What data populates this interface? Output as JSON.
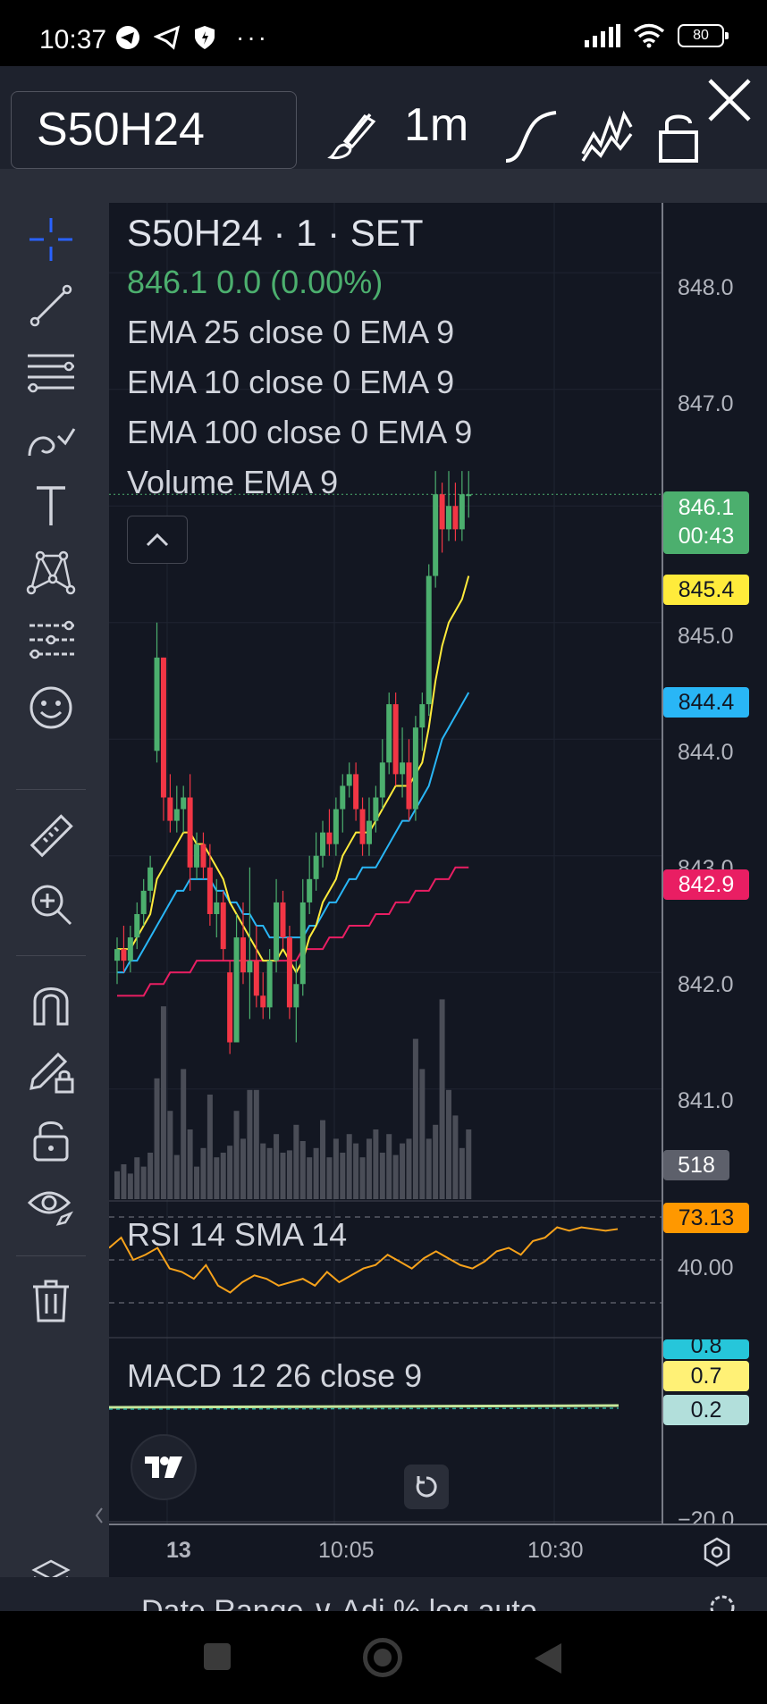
{
  "status_bar": {
    "time": "10:37",
    "icons": [
      "telegram-icon",
      "send-icon",
      "shield-icon",
      "more-dots"
    ],
    "battery": "80"
  },
  "toolbar": {
    "symbol": "S50H24",
    "interval": "1m"
  },
  "legend": {
    "title": "S50H24 · 1 · SET",
    "price_line": "846.1  0.0 (0.00%)",
    "studies": [
      "EMA 25 close 0 EMA 9",
      "EMA 10 close 0 EMA 9",
      "EMA 100 close 0 EMA 9",
      "Volume EMA 9"
    ]
  },
  "price_axis": {
    "ticks": [
      "848.0",
      "847.0",
      "845.0",
      "844.0",
      "843.0",
      "842.0",
      "841.0"
    ],
    "tags": {
      "last": "846.1",
      "countdown": "00:43",
      "ema10": "845.4",
      "ema25": "844.4",
      "ema100": "842.9",
      "volume": "518"
    }
  },
  "rsi": {
    "label": "RSI 14 SMA 14",
    "value": "73.13",
    "tick": "40.00"
  },
  "macd": {
    "label": "MACD 12 26 close 9",
    "values": [
      "0.8",
      "0.7",
      "0.2"
    ],
    "tick": "−20.0"
  },
  "time_axis": {
    "labels": [
      "13",
      "10:05",
      "10:30"
    ]
  },
  "bottom_bar": {
    "text": "Date Range ∨   Adj   %   log   auto"
  },
  "colors": {
    "up": "#4caf6e",
    "down": "#f23645",
    "ema10": "#ffeb3b",
    "ema25": "#29b6f6",
    "ema100": "#e91e63",
    "rsi_line": "#f7a21b",
    "accent_cross": "#2962ff"
  },
  "chart_data": {
    "type": "candlestick",
    "title": "S50H24 · 1 · SET",
    "ylim": [
      840.4,
      848.6
    ],
    "candles": [
      {
        "o": 842.1,
        "h": 842.3,
        "l": 841.9,
        "c": 842.2
      },
      {
        "o": 842.2,
        "h": 842.4,
        "l": 842.0,
        "c": 842.1
      },
      {
        "o": 842.1,
        "h": 842.4,
        "l": 842.0,
        "c": 842.3
      },
      {
        "o": 842.3,
        "h": 842.6,
        "l": 842.2,
        "c": 842.5
      },
      {
        "o": 842.5,
        "h": 842.8,
        "l": 842.4,
        "c": 842.7
      },
      {
        "o": 842.7,
        "h": 843.0,
        "l": 842.6,
        "c": 842.9
      },
      {
        "o": 843.9,
        "h": 845.0,
        "l": 843.8,
        "c": 844.7
      },
      {
        "o": 844.7,
        "h": 844.7,
        "l": 843.3,
        "c": 843.5
      },
      {
        "o": 843.5,
        "h": 843.7,
        "l": 843.2,
        "c": 843.3
      },
      {
        "o": 843.3,
        "h": 843.6,
        "l": 843.2,
        "c": 843.4
      },
      {
        "o": 843.4,
        "h": 843.6,
        "l": 843.2,
        "c": 843.5
      },
      {
        "o": 843.5,
        "h": 843.7,
        "l": 842.7,
        "c": 842.9
      },
      {
        "o": 842.9,
        "h": 843.2,
        "l": 842.8,
        "c": 843.1
      },
      {
        "o": 843.1,
        "h": 843.2,
        "l": 842.8,
        "c": 842.9
      },
      {
        "o": 842.9,
        "h": 843.1,
        "l": 842.4,
        "c": 842.5
      },
      {
        "o": 842.5,
        "h": 842.8,
        "l": 842.3,
        "c": 842.6
      },
      {
        "o": 842.6,
        "h": 842.7,
        "l": 842.1,
        "c": 842.2
      },
      {
        "o": 842.0,
        "h": 842.1,
        "l": 841.3,
        "c": 841.4
      },
      {
        "o": 841.4,
        "h": 842.5,
        "l": 841.4,
        "c": 842.3
      },
      {
        "o": 842.3,
        "h": 842.6,
        "l": 841.9,
        "c": 842.0
      },
      {
        "o": 842.0,
        "h": 842.9,
        "l": 841.6,
        "c": 842.1
      },
      {
        "o": 842.1,
        "h": 842.4,
        "l": 841.7,
        "c": 841.8
      },
      {
        "o": 841.8,
        "h": 842.0,
        "l": 841.6,
        "c": 841.7
      },
      {
        "o": 841.7,
        "h": 842.2,
        "l": 841.6,
        "c": 842.1
      },
      {
        "o": 842.1,
        "h": 842.8,
        "l": 842.0,
        "c": 842.6
      },
      {
        "o": 842.6,
        "h": 842.7,
        "l": 842.2,
        "c": 842.3
      },
      {
        "o": 842.3,
        "h": 842.4,
        "l": 841.6,
        "c": 841.7
      },
      {
        "o": 841.7,
        "h": 842.1,
        "l": 841.4,
        "c": 841.9
      },
      {
        "o": 841.9,
        "h": 842.8,
        "l": 841.8,
        "c": 842.6
      },
      {
        "o": 842.6,
        "h": 843.0,
        "l": 842.5,
        "c": 842.8
      },
      {
        "o": 842.8,
        "h": 843.2,
        "l": 842.7,
        "c": 843.0
      },
      {
        "o": 843.0,
        "h": 843.3,
        "l": 842.9,
        "c": 843.2
      },
      {
        "o": 843.2,
        "h": 843.4,
        "l": 843.0,
        "c": 843.1
      },
      {
        "o": 843.1,
        "h": 843.5,
        "l": 843.0,
        "c": 843.4
      },
      {
        "o": 843.4,
        "h": 843.7,
        "l": 843.2,
        "c": 843.6
      },
      {
        "o": 843.6,
        "h": 843.8,
        "l": 843.5,
        "c": 843.7
      },
      {
        "o": 843.7,
        "h": 843.8,
        "l": 843.3,
        "c": 843.4
      },
      {
        "o": 843.4,
        "h": 843.5,
        "l": 843.0,
        "c": 843.1
      },
      {
        "o": 843.1,
        "h": 843.5,
        "l": 843.0,
        "c": 843.3
      },
      {
        "o": 843.3,
        "h": 843.6,
        "l": 843.2,
        "c": 843.5
      },
      {
        "o": 843.5,
        "h": 844.0,
        "l": 843.4,
        "c": 843.8
      },
      {
        "o": 843.8,
        "h": 844.4,
        "l": 843.7,
        "c": 844.3
      },
      {
        "o": 844.3,
        "h": 844.4,
        "l": 843.6,
        "c": 843.7
      },
      {
        "o": 843.7,
        "h": 844.1,
        "l": 843.5,
        "c": 843.8
      },
      {
        "o": 843.8,
        "h": 844.0,
        "l": 843.3,
        "c": 843.4
      },
      {
        "o": 843.4,
        "h": 844.2,
        "l": 843.3,
        "c": 844.1
      },
      {
        "o": 844.1,
        "h": 844.4,
        "l": 843.9,
        "c": 844.3
      },
      {
        "o": 844.3,
        "h": 845.5,
        "l": 844.2,
        "c": 845.4
      },
      {
        "o": 845.4,
        "h": 846.3,
        "l": 845.3,
        "c": 846.1
      },
      {
        "o": 846.1,
        "h": 846.2,
        "l": 845.6,
        "c": 845.8
      },
      {
        "o": 845.8,
        "h": 846.3,
        "l": 845.7,
        "c": 846.0
      },
      {
        "o": 846.0,
        "h": 846.2,
        "l": 845.7,
        "c": 845.8
      },
      {
        "o": 845.8,
        "h": 846.3,
        "l": 845.7,
        "c": 846.1
      },
      {
        "o": 846.1,
        "h": 846.3,
        "l": 845.9,
        "c": 846.1
      }
    ],
    "ema10": [
      842.2,
      842.2,
      842.2,
      842.3,
      842.4,
      842.5,
      842.8,
      842.9,
      843.0,
      843.1,
      843.2,
      843.2,
      843.1,
      843.1,
      843.0,
      842.9,
      842.8,
      842.6,
      842.5,
      842.4,
      842.3,
      842.2,
      842.1,
      842.1,
      842.1,
      842.2,
      842.1,
      842.0,
      842.1,
      842.3,
      842.4,
      842.6,
      842.7,
      842.8,
      843.0,
      843.1,
      843.2,
      843.2,
      843.2,
      843.3,
      843.4,
      843.5,
      843.6,
      843.6,
      843.6,
      843.7,
      843.8,
      844.1,
      844.5,
      844.8,
      845.0,
      845.1,
      845.2,
      845.4
    ],
    "ema25": [
      842.0,
      842.0,
      842.1,
      842.1,
      842.2,
      842.3,
      842.4,
      842.5,
      842.6,
      842.7,
      842.7,
      842.8,
      842.8,
      842.8,
      842.8,
      842.7,
      842.7,
      842.6,
      842.6,
      842.5,
      842.5,
      842.4,
      842.4,
      842.3,
      842.3,
      842.3,
      842.3,
      842.3,
      842.3,
      842.4,
      842.4,
      842.5,
      842.6,
      842.6,
      842.7,
      842.8,
      842.8,
      842.9,
      842.9,
      842.9,
      843.0,
      843.1,
      843.2,
      843.3,
      843.3,
      843.4,
      843.5,
      843.6,
      843.8,
      844.0,
      844.1,
      844.2,
      844.3,
      844.4
    ],
    "ema100": [
      841.8,
      841.8,
      841.8,
      841.8,
      841.8,
      841.9,
      841.9,
      841.9,
      842.0,
      842.0,
      842.0,
      842.0,
      842.1,
      842.1,
      842.1,
      842.1,
      842.1,
      842.1,
      842.1,
      842.1,
      842.1,
      842.1,
      842.1,
      842.1,
      842.1,
      842.1,
      842.1,
      842.1,
      842.2,
      842.2,
      842.2,
      842.2,
      842.3,
      842.3,
      842.3,
      842.4,
      842.4,
      842.4,
      842.4,
      842.5,
      842.5,
      842.5,
      842.6,
      842.6,
      842.6,
      842.7,
      842.7,
      842.7,
      842.8,
      842.8,
      842.8,
      842.9,
      842.9,
      842.9
    ],
    "volume": [
      120,
      150,
      110,
      180,
      140,
      200,
      520,
      830,
      380,
      190,
      560,
      300,
      140,
      220,
      450,
      180,
      200,
      230,
      380,
      260,
      470,
      470,
      240,
      220,
      280,
      200,
      210,
      320,
      250,
      180,
      220,
      340,
      180,
      260,
      200,
      280,
      240,
      180,
      260,
      300,
      200,
      280,
      190,
      240,
      260,
      690,
      560,
      260,
      320,
      860,
      470,
      360,
      220,
      300
    ],
    "rsi": [
      62,
      68,
      55,
      58,
      62,
      50,
      48,
      44,
      52,
      40,
      36,
      42,
      46,
      44,
      40,
      42,
      44,
      40,
      48,
      42,
      46,
      50,
      52,
      58,
      54,
      50,
      56,
      60,
      56,
      52,
      50,
      54,
      60,
      62,
      58,
      66,
      68,
      74,
      72,
      74,
      73,
      72,
      73
    ]
  }
}
